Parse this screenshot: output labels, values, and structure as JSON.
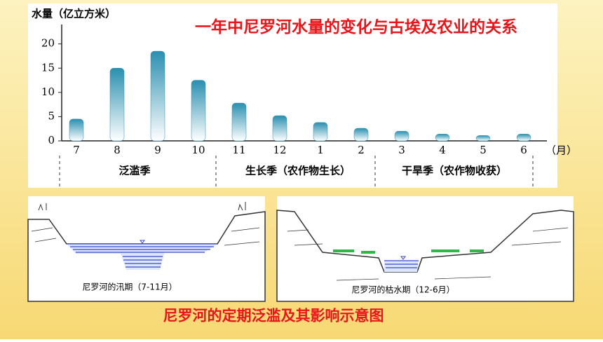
{
  "chart_data": {
    "type": "bar",
    "title": "一年中尼罗河水量的变化与古埃及农业的关系",
    "ylabel": "水量（亿立方米）",
    "xlabel": "（月）",
    "categories": [
      "7",
      "8",
      "9",
      "10",
      "11",
      "12",
      "1",
      "2",
      "3",
      "4",
      "5",
      "6"
    ],
    "values": [
      4.5,
      15,
      18.5,
      12.5,
      7.8,
      5.2,
      3.8,
      2.6,
      2,
      1.4,
      1.1,
      1.4
    ],
    "color": "#2a8fb0",
    "ylim": [
      0,
      24
    ],
    "yticks": [
      0,
      5,
      10,
      15,
      20
    ],
    "seasons": [
      "泛滥季",
      "生长季（农作物生长）",
      "干旱季（农作物收获）"
    ]
  },
  "diagrams": [
    {
      "caption": "尼罗河的汛期（7-11月）"
    },
    {
      "caption": "尼罗河的枯水期（12-6月）"
    }
  ],
  "footer": {
    "title": "尼罗河的定期泛滥及其影响示意图"
  }
}
